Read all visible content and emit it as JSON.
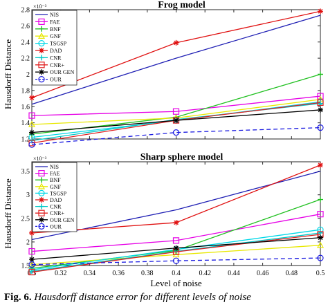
{
  "chart_data": [
    {
      "type": "line",
      "title": "Frog model",
      "ylabel": "Hausdorff Distance",
      "xlabel": "",
      "y_exponent": "×10⁻³",
      "xlim": [
        0.3,
        0.5
      ],
      "ylim": [
        1.2,
        2.8
      ],
      "xticks": [
        0.3,
        0.32,
        0.34,
        0.36,
        0.38,
        0.4,
        0.42,
        0.44,
        0.46,
        0.48,
        0.5
      ],
      "xtick_labels": [],
      "yticks": [
        1.2,
        1.4,
        1.6,
        1.8,
        2.0,
        2.2,
        2.4,
        2.6,
        2.8
      ],
      "ytick_labels": [
        "1.2",
        "1.4",
        "1.6",
        "1.8",
        "2",
        "2.2",
        "2.4",
        "2.6",
        "2.8"
      ],
      "x": [
        0.3,
        0.4,
        0.5
      ],
      "legend_position": "top-left",
      "series": [
        {
          "name": "NIS",
          "values": [
            1.63,
            2.2,
            2.73
          ],
          "color": "#1f1fb4",
          "marker": "none",
          "dash": "solid"
        },
        {
          "name": "FAE",
          "values": [
            1.49,
            1.54,
            1.73
          ],
          "color": "#e600e6",
          "marker": "square",
          "dash": "solid"
        },
        {
          "name": "BNF",
          "values": [
            1.26,
            1.47,
            2.0
          ],
          "color": "#20c020",
          "marker": "plus",
          "dash": "solid"
        },
        {
          "name": "GNF",
          "values": [
            1.38,
            1.46,
            1.69
          ],
          "color": "#e8e800",
          "marker": "triangle",
          "dash": "solid"
        },
        {
          "name": "TSGSP",
          "values": [
            1.22,
            1.43,
            1.66
          ],
          "color": "#00d8e8",
          "marker": "circle",
          "dash": "solid"
        },
        {
          "name": "DAD",
          "values": [
            1.71,
            2.39,
            2.78
          ],
          "color": "#e01010",
          "marker": "star",
          "dash": "solid"
        },
        {
          "name": "CNR",
          "values": [
            1.18,
            1.44,
            1.64
          ],
          "color": "#00c8c8",
          "marker": "plus",
          "dash": "solid"
        },
        {
          "name": "CNR+",
          "values": [
            1.15,
            1.43,
            1.65
          ],
          "color": "#e02020",
          "marker": "square",
          "dash": "solid"
        },
        {
          "name": "OUR GEN",
          "values": [
            1.28,
            1.43,
            1.56
          ],
          "color": "#000000",
          "marker": "star",
          "dash": "solid"
        },
        {
          "name": "OUR",
          "values": [
            1.13,
            1.28,
            1.34
          ],
          "color": "#1a1ae0",
          "marker": "circle",
          "dash": "dashed"
        }
      ]
    },
    {
      "type": "line",
      "title": "Sharp sphere model",
      "ylabel": "Hausdorff Distance",
      "xlabel": "Level of noise",
      "y_exponent": "×10⁻³",
      "xlim": [
        0.3,
        0.5
      ],
      "ylim": [
        1.5,
        3.7
      ],
      "xticks": [
        0.3,
        0.32,
        0.34,
        0.36,
        0.38,
        0.4,
        0.42,
        0.44,
        0.46,
        0.48,
        0.5
      ],
      "xtick_labels": [
        "0.3",
        "0.32",
        "0.34",
        "0.36",
        "0.38",
        "0.4",
        "0.42",
        "0.44",
        "0.46",
        "0.48",
        "0.5"
      ],
      "yticks": [
        1.5,
        2.0,
        2.5,
        3.0,
        3.5
      ],
      "ytick_labels": [
        "1.5",
        "2",
        "2.5",
        "3",
        "3.5"
      ],
      "x": [
        0.3,
        0.4,
        0.5
      ],
      "legend_position": "top-left",
      "series": [
        {
          "name": "NIS",
          "values": [
            2.05,
            2.68,
            3.5
          ],
          "color": "#1f1fb4",
          "marker": "none",
          "dash": "solid"
        },
        {
          "name": "FAE",
          "values": [
            1.8,
            2.03,
            2.59
          ],
          "color": "#e600e6",
          "marker": "square",
          "dash": "solid"
        },
        {
          "name": "BNF",
          "values": [
            1.44,
            1.82,
            2.9
          ],
          "color": "#20c020",
          "marker": "plus",
          "dash": "solid"
        },
        {
          "name": "GNF",
          "values": [
            1.52,
            1.73,
            1.93
          ],
          "color": "#e8e800",
          "marker": "triangle",
          "dash": "solid"
        },
        {
          "name": "TSGSP",
          "values": [
            1.41,
            1.84,
            2.26
          ],
          "color": "#00d8e8",
          "marker": "circle",
          "dash": "solid"
        },
        {
          "name": "DAD",
          "values": [
            2.19,
            2.41,
            3.63
          ],
          "color": "#e01010",
          "marker": "star",
          "dash": "solid"
        },
        {
          "name": "CNR",
          "values": [
            1.38,
            1.8,
            2.19
          ],
          "color": "#00c8c8",
          "marker": "plus",
          "dash": "solid"
        },
        {
          "name": "CNR+",
          "values": [
            1.36,
            1.79,
            2.16
          ],
          "color": "#e02020",
          "marker": "square",
          "dash": "solid"
        },
        {
          "name": "OUR GEN",
          "values": [
            1.63,
            1.87,
            2.09
          ],
          "color": "#000000",
          "marker": "star",
          "dash": "solid"
        },
        {
          "name": "OUR",
          "values": [
            1.52,
            1.6,
            1.66
          ],
          "color": "#1a1ae0",
          "marker": "circle",
          "dash": "dashed"
        }
      ]
    }
  ],
  "caption": {
    "label": "Fig. 6.",
    "text": "Hausdorff distance error for different levels of noise"
  }
}
